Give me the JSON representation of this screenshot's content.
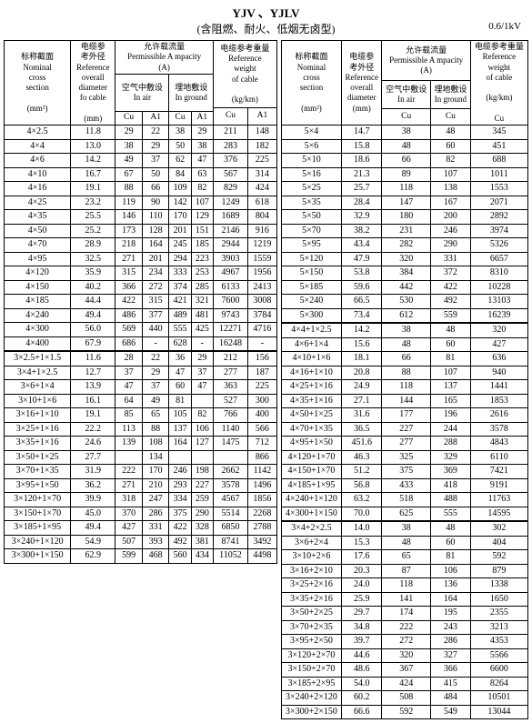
{
  "title": "YJV 、YJLV",
  "subtitle": "(含阻燃、耐火、低烟无卤型)",
  "voltage": "0.6/1kV",
  "headers": {
    "nominal_zh": "标称截面",
    "nominal_en1": "Nominal",
    "nominal_en2": "cross",
    "nominal_en3": "section",
    "nominal_unit": "(mm²)",
    "ref_od_zh1": "电缆参",
    "ref_od_zh2": "考外径",
    "ref_od_en1": "Reference",
    "ref_od_en2": "overall",
    "ref_od_en3": "diameter",
    "ref_od_en4": "fo cable",
    "ref_od_unit": "(mm)",
    "amp_zh": "允许载流量",
    "amp_en": "Permissible A mpacity",
    "amp_unit": "(A)",
    "air_zh": "空气中敷设",
    "air_en": "In air",
    "ground_zh": "埋地敷设",
    "ground_en": "In ground",
    "wt_zh": "电缆参考重量",
    "wt_en1": "Reference",
    "wt_en2": "weight",
    "wt_en3": "of cable",
    "wt_unit": "(kg/km)",
    "cu": "Cu",
    "al": "A1"
  },
  "left_rows": [
    [
      "4×2.5",
      "11.8",
      "29",
      "22",
      "38",
      "29",
      "211",
      "148"
    ],
    [
      "4×4",
      "13.0",
      "38",
      "29",
      "50",
      "38",
      "283",
      "182"
    ],
    [
      "4×6",
      "14.2",
      "49",
      "37",
      "62",
      "47",
      "376",
      "225"
    ],
    [
      "4×10",
      "16.7",
      "67",
      "50",
      "84",
      "63",
      "567",
      "314"
    ],
    [
      "4×16",
      "19.1",
      "88",
      "66",
      "109",
      "82",
      "829",
      "424"
    ],
    [
      "4×25",
      "23.2",
      "119",
      "90",
      "142",
      "107",
      "1249",
      "618"
    ],
    [
      "4×35",
      "25.5",
      "146",
      "110",
      "170",
      "129",
      "1689",
      "804"
    ],
    [
      "4×50",
      "25.2",
      "173",
      "128",
      "201",
      "151",
      "2146",
      "916"
    ],
    [
      "4×70",
      "28.9",
      "218",
      "164",
      "245",
      "185",
      "2944",
      "1219"
    ],
    [
      "4×95",
      "32.5",
      "271",
      "201",
      "294",
      "223",
      "3903",
      "1559"
    ],
    [
      "4×120",
      "35.9",
      "315",
      "234",
      "333",
      "253",
      "4967",
      "1956"
    ],
    [
      "4×150",
      "40.2",
      "366",
      "272",
      "374",
      "285",
      "6133",
      "2413"
    ],
    [
      "4×185",
      "44.4",
      "422",
      "315",
      "421",
      "321",
      "7600",
      "3008"
    ],
    [
      "4×240",
      "49.4",
      "486",
      "377",
      "489",
      "481",
      "9743",
      "3784"
    ],
    [
      "4×300",
      "56.0",
      "569",
      "440",
      "555",
      "425",
      "12271",
      "4716"
    ],
    [
      "4×400",
      "67.9",
      "686",
      "-",
      "628",
      "-",
      "16248",
      "-"
    ],
    [
      "3×2.5+1×1.5",
      "11.6",
      "28",
      "22",
      "36",
      "29",
      "212",
      "156"
    ],
    [
      "3×4+1×2.5",
      "12.7",
      "37",
      "29",
      "47",
      "37",
      "277",
      "187"
    ],
    [
      "3×6+1×4",
      "13.9",
      "47",
      "37",
      "60",
      "47",
      "363",
      "225"
    ],
    [
      "3×10+1×6",
      "16.1",
      "64",
      "49",
      "81",
      "",
      "527",
      "300"
    ],
    [
      "3×16+1×10",
      "19.1",
      "85",
      "65",
      "105",
      "82",
      "766",
      "400"
    ],
    [
      "3×25+1×16",
      "22.2",
      "113",
      "88",
      "137",
      "106",
      "1140",
      "566"
    ],
    [
      "3×35+1×16",
      "24.6",
      "139",
      "108",
      "164",
      "127",
      "1475",
      "712"
    ],
    [
      "3×50+1×25",
      "27.7",
      "",
      "134",
      "",
      "",
      "",
      "866"
    ],
    [
      "3×70+1×35",
      "31.9",
      "222",
      "170",
      "246",
      "198",
      "2662",
      "1142"
    ],
    [
      "3×95+1×50",
      "36.2",
      "271",
      "210",
      "293",
      "227",
      "3578",
      "1496"
    ],
    [
      "3×120+1×70",
      "39.9",
      "318",
      "247",
      "334",
      "259",
      "4567",
      "1856"
    ],
    [
      "3×150+1×70",
      "45.0",
      "370",
      "286",
      "375",
      "290",
      "5514",
      "2268"
    ],
    [
      "3×185+1×95",
      "49.4",
      "427",
      "331",
      "422",
      "328",
      "6850",
      "2788"
    ],
    [
      "3×240+1×120",
      "54.9",
      "507",
      "393",
      "492",
      "381",
      "8741",
      "3492"
    ],
    [
      "3×300+1×150",
      "62.9",
      "599",
      "468",
      "560",
      "434",
      "11052",
      "4498"
    ]
  ],
  "right_sections": [
    [
      [
        "5×4",
        "14.7",
        "38",
        "48",
        "345"
      ],
      [
        "5×6",
        "15.8",
        "48",
        "60",
        "451"
      ],
      [
        "5×10",
        "18.6",
        "66",
        "82",
        "688"
      ],
      [
        "5×16",
        "21.3",
        "89",
        "107",
        "1011"
      ],
      [
        "5×25",
        "25.7",
        "118",
        "138",
        "1553"
      ],
      [
        "5×35",
        "28.4",
        "147",
        "167",
        "2071"
      ],
      [
        "5×50",
        "32.9",
        "180",
        "200",
        "2892"
      ],
      [
        "5×70",
        "38.2",
        "231",
        "246",
        "3974"
      ],
      [
        "5×95",
        "43.4",
        "282",
        "290",
        "5326"
      ],
      [
        "5×120",
        "47.9",
        "320",
        "331",
        "6657"
      ],
      [
        "5×150",
        "53.8",
        "384",
        "372",
        "8310"
      ],
      [
        "5×185",
        "59.6",
        "442",
        "422",
        "10228"
      ],
      [
        "5×240",
        "66.5",
        "530",
        "492",
        "13103"
      ],
      [
        "5×300",
        "73.4",
        "612",
        "559",
        "16239"
      ]
    ],
    [
      [
        "4×4+1×2.5",
        "14.2",
        "38",
        "48",
        "320"
      ],
      [
        "4×6+1×4",
        "15.6",
        "48",
        "60",
        "427"
      ],
      [
        "4×10+1×6",
        "18.1",
        "66",
        "81",
        "636"
      ],
      [
        "4×16+1×10",
        "20.8",
        "88",
        "107",
        "940"
      ],
      [
        "4×25+1×16",
        "24.9",
        "118",
        "137",
        "1441"
      ],
      [
        "4×35+1×16",
        "27.1",
        "144",
        "165",
        "1853"
      ],
      [
        "4×50+1×25",
        "31.6",
        "177",
        "196",
        "2616"
      ],
      [
        "4×70+1×35",
        "36.5",
        "227",
        "244",
        "3578"
      ],
      [
        "4×95+1×50",
        "451.6",
        "277",
        "288",
        "4843"
      ],
      [
        "4×120+1×70",
        "46.3",
        "325",
        "329",
        "6110"
      ],
      [
        "4×150+1×70",
        "51.2",
        "375",
        "369",
        "7421"
      ],
      [
        "4×185+1×95",
        "56.8",
        "433",
        "418",
        "9191"
      ],
      [
        "4×240+1×120",
        "63.2",
        "518",
        "488",
        "11763"
      ],
      [
        "4×300+1×150",
        "70.0",
        "625",
        "555",
        "14595"
      ]
    ],
    [
      [
        "3×4+2×2.5",
        "14.0",
        "38",
        "48",
        "302"
      ],
      [
        "3×6+2×4",
        "15.3",
        "48",
        "60",
        "404"
      ],
      [
        "3×10+2×6",
        "17.6",
        "65",
        "81",
        "592"
      ],
      [
        "3×16+2×10",
        "20.3",
        "87",
        "106",
        "879"
      ],
      [
        "3×25+2×16",
        "24.0",
        "118",
        "136",
        "1338"
      ],
      [
        "3×35+2×16",
        "25.9",
        "141",
        "164",
        "1650"
      ],
      [
        "3×50+2×25",
        "29.7",
        "174",
        "195",
        "2355"
      ],
      [
        "3×70+2×35",
        "34.8",
        "222",
        "243",
        "3213"
      ],
      [
        "3×95+2×50",
        "39.7",
        "272",
        "286",
        "4353"
      ],
      [
        "3×120+2×70",
        "44.6",
        "320",
        "327",
        "5566"
      ],
      [
        "3×150+2×70",
        "48.6",
        "367",
        "366",
        "6600"
      ],
      [
        "3×185+2×95",
        "54.0",
        "424",
        "415",
        "8264"
      ],
      [
        "3×240+2×120",
        "60.2",
        "508",
        "484",
        "10501"
      ],
      [
        "3×300+2×150",
        "66.6",
        "592",
        "549",
        "13044"
      ]
    ]
  ]
}
